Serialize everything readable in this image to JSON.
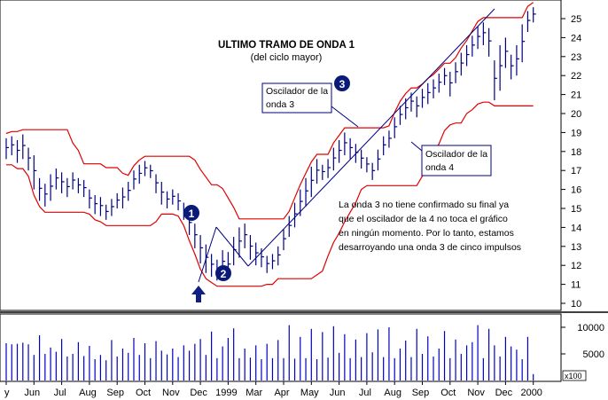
{
  "title": "ULTIMO TRAMO DE ONDA 1",
  "subtitle": "(del ciclo mayor)",
  "annotations": {
    "osc3_line1": "Oscilador de la",
    "osc3_line2": "onda 3",
    "osc4_line1": "Oscilador de la",
    "osc4_line2": "onda 4",
    "note_lines": [
      "La onda 3 no tiene confirmado su final ya",
      "que el oscilador de la 4 no toca el gráfico",
      "en ningún momento. Por lo tanto, estamos",
      "desarroyando una onda 3 de cinco impulsos"
    ],
    "wave_labels": [
      "1",
      "2",
      "3"
    ],
    "volume_multiplier": "x100"
  },
  "colors": {
    "price_bars": "#000080",
    "channel": "#e00000",
    "trendline": "#000080",
    "volume": "#0000c0",
    "badge": "#0a1a78",
    "arrow": "#102080"
  },
  "chart_data": [
    {
      "type": "ohlc-bar",
      "name": "price",
      "x_ticks": [
        "y",
        "Jun",
        "Jul",
        "Aug",
        "Sep",
        "Oct",
        "Nov",
        "Dec",
        "1999",
        "Mar",
        "Apr",
        "May",
        "Jun",
        "Jul",
        "Aug",
        "Sep",
        "Oct",
        "Nov",
        "Dec",
        "2000"
      ],
      "y_ticks": [
        10,
        11,
        12,
        13,
        14,
        15,
        16,
        17,
        18,
        19,
        20,
        21,
        22,
        23,
        24,
        25
      ],
      "ylim": [
        10,
        25.6
      ],
      "bars_per_month": 5,
      "bars": [
        [
          18.7,
          17.6
        ],
        [
          18.8,
          17.8
        ],
        [
          18.6,
          17.4
        ],
        [
          18.9,
          17.6
        ],
        [
          18.2,
          17.0
        ],
        [
          17.8,
          16.0
        ],
        [
          16.6,
          15.4
        ],
        [
          16.3,
          15.1
        ],
        [
          16.8,
          15.4
        ],
        [
          17.1,
          16.0
        ],
        [
          16.9,
          15.8
        ],
        [
          16.6,
          15.6
        ],
        [
          16.9,
          16.0
        ],
        [
          16.6,
          15.8
        ],
        [
          16.5,
          15.6
        ],
        [
          16.0,
          15.0
        ],
        [
          15.7,
          14.7
        ],
        [
          15.6,
          14.6
        ],
        [
          15.2,
          14.4
        ],
        [
          15.5,
          14.6
        ],
        [
          15.8,
          15.0
        ],
        [
          16.1,
          15.0
        ],
        [
          16.4,
          15.4
        ],
        [
          17.0,
          16.0
        ],
        [
          17.3,
          16.3
        ],
        [
          17.5,
          16.7
        ],
        [
          17.3,
          16.6
        ],
        [
          16.8,
          15.8
        ],
        [
          16.4,
          15.2
        ],
        [
          15.9,
          15.0
        ],
        [
          16.0,
          15.2
        ],
        [
          15.8,
          14.9
        ],
        [
          15.3,
          14.4
        ],
        [
          14.8,
          13.6
        ],
        [
          14.2,
          12.9
        ],
        [
          13.6,
          12.1
        ],
        [
          13.1,
          11.6
        ],
        [
          12.6,
          11.4
        ],
        [
          12.3,
          11.2
        ],
        [
          12.8,
          11.5
        ],
        [
          12.7,
          11.3
        ],
        [
          13.5,
          12.0
        ],
        [
          14.0,
          12.4
        ],
        [
          14.2,
          12.9
        ],
        [
          13.6,
          12.3
        ],
        [
          13.2,
          12.0
        ],
        [
          12.9,
          11.9
        ],
        [
          12.5,
          11.6
        ],
        [
          12.6,
          11.8
        ],
        [
          13.0,
          12.0
        ],
        [
          13.9,
          12.8
        ],
        [
          14.6,
          13.5
        ],
        [
          15.3,
          14.0
        ],
        [
          16.0,
          14.6
        ],
        [
          16.6,
          15.1
        ],
        [
          17.2,
          15.6
        ],
        [
          17.6,
          16.3
        ],
        [
          17.3,
          16.5
        ],
        [
          17.6,
          16.6
        ],
        [
          18.2,
          17.0
        ],
        [
          18.6,
          17.4
        ],
        [
          19.0,
          17.8
        ],
        [
          18.7,
          17.6
        ],
        [
          18.4,
          17.4
        ],
        [
          18.1,
          17.1
        ],
        [
          17.7,
          16.9
        ],
        [
          17.4,
          16.5
        ],
        [
          18.1,
          17.0
        ],
        [
          18.8,
          17.8
        ],
        [
          19.1,
          18.2
        ],
        [
          19.8,
          18.7
        ],
        [
          20.4,
          19.4
        ],
        [
          20.8,
          19.7
        ],
        [
          21.1,
          20.1
        ],
        [
          20.9,
          19.8
        ],
        [
          21.3,
          20.3
        ],
        [
          21.6,
          20.5
        ],
        [
          21.8,
          20.8
        ],
        [
          22.1,
          21.1
        ],
        [
          22.4,
          21.5
        ],
        [
          22.2,
          20.9
        ],
        [
          22.7,
          21.6
        ],
        [
          23.2,
          22.0
        ],
        [
          23.6,
          22.5
        ],
        [
          24.1,
          23.0
        ],
        [
          24.6,
          23.4
        ],
        [
          24.8,
          23.6
        ],
        [
          24.5,
          23.0
        ],
        [
          22.8,
          20.7
        ],
        [
          23.6,
          21.2
        ],
        [
          24.0,
          22.4
        ],
        [
          23.1,
          21.8
        ],
        [
          23.6,
          22.0
        ],
        [
          24.7,
          22.7
        ],
        [
          25.4,
          24.3
        ],
        [
          25.6,
          24.8
        ]
      ]
    },
    {
      "type": "bar",
      "name": "volume",
      "y_ticks": [
        5000,
        10000
      ],
      "ylim": [
        0,
        11000
      ],
      "values": [
        7000,
        6800,
        6900,
        7100,
        6800,
        4800,
        8500,
        5000,
        6200,
        5400,
        7800,
        4500,
        5000,
        7200,
        4600,
        6500,
        4000,
        4800,
        3800,
        7600,
        4500,
        6000,
        5200,
        8000,
        4800,
        7000,
        4200,
        7400,
        5600,
        4900,
        6000,
        4400,
        6600,
        5600,
        6900,
        7800,
        4800,
        9200,
        4200,
        6400,
        8000,
        9800,
        4200,
        6000,
        4300,
        6600,
        4000,
        6900,
        4200,
        7600,
        4200,
        10400,
        4100,
        8200,
        4200,
        9700,
        4000,
        9100,
        4300,
        10200,
        5200,
        8700,
        4200,
        7700,
        4400,
        8900,
        5300,
        9600,
        4400,
        10000,
        4200,
        6000,
        7500,
        4400,
        9700,
        5000,
        8300,
        4500,
        6000,
        9300,
        4200,
        7700,
        5000,
        6600,
        7200,
        10400,
        4200,
        9700,
        6600,
        4500,
        8200,
        6400,
        5800,
        4000,
        8200,
        1200
      ]
    }
  ]
}
